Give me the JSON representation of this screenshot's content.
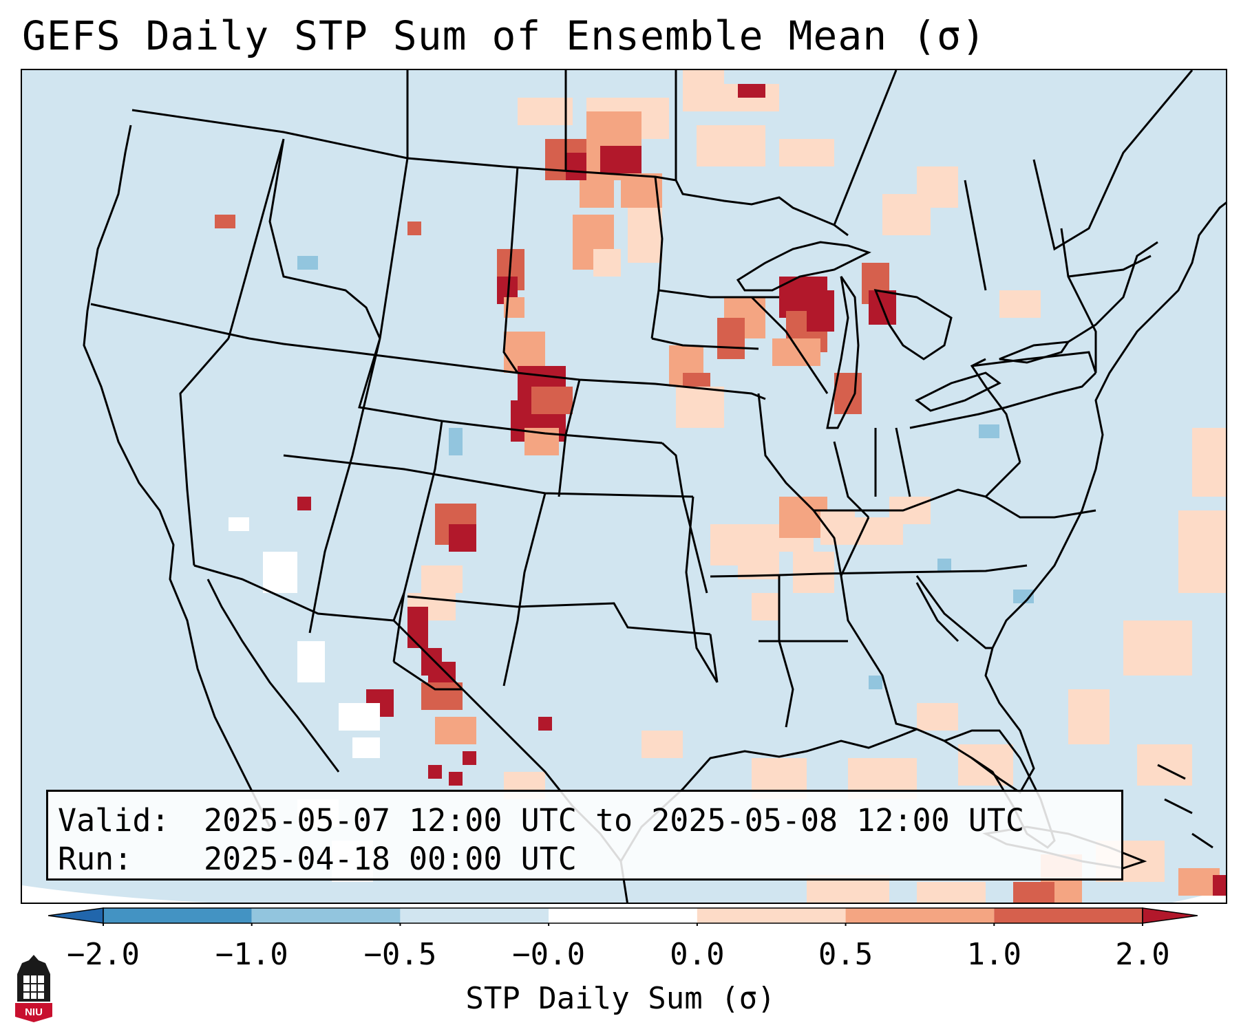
{
  "title": "GEFS Daily STP Sum of Ensemble Mean (σ)",
  "info": {
    "valid_label": "Valid:",
    "valid_value": "2025-05-07 12:00 UTC to 2025-05-08 12:00 UTC",
    "run_label": "Run:",
    "run_value": "2025-04-18 00:00 UTC"
  },
  "colorbar": {
    "label": "STP Daily Sum (σ)",
    "ticks": [
      "−2.0",
      "−1.0",
      "−0.5",
      "−0.0",
      "0.0",
      "0.5",
      "1.0",
      "2.0"
    ],
    "colors": [
      "#2166ac",
      "#4393c3",
      "#92c5de",
      "#d1e5f0",
      "#ffffff",
      "#fddbc7",
      "#f4a582",
      "#d6604d",
      "#b2182b"
    ]
  },
  "map": {
    "background_color": "#d1e5f0",
    "land_color": "#d1e5f0",
    "outside_projection_color": "#ffffff"
  },
  "logo": {
    "text": "NIU",
    "icon": "niu-tower-logo-icon"
  }
}
